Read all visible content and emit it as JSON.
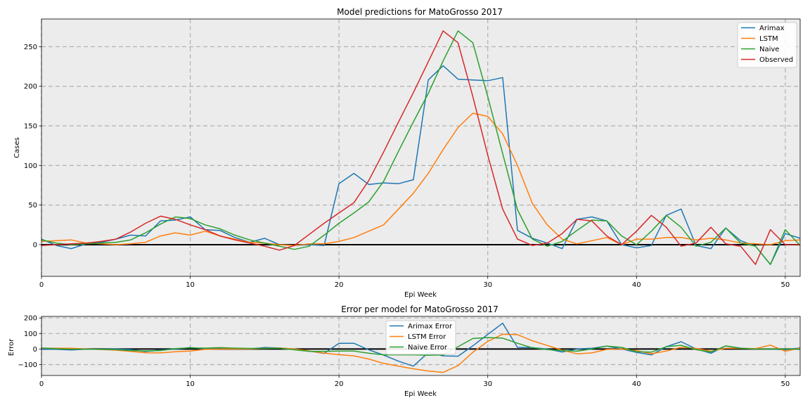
{
  "chart_data": [
    {
      "type": "line",
      "title": "Model predictions for MatoGrosso 2017",
      "xlabel": "Epi Week",
      "ylabel": "Cases",
      "xlim": [
        0,
        51
      ],
      "ylim": [
        -40,
        285
      ],
      "xticks": [
        0,
        10,
        20,
        30,
        40,
        50
      ],
      "yticks": [
        0,
        50,
        100,
        150,
        200,
        250
      ],
      "grid": true,
      "legend_position": "top-right",
      "zero_line": true,
      "x": [
        0,
        1,
        2,
        3,
        4,
        5,
        6,
        7,
        8,
        9,
        10,
        11,
        12,
        13,
        14,
        15,
        16,
        17,
        18,
        19,
        20,
        21,
        22,
        23,
        24,
        25,
        26,
        27,
        28,
        29,
        30,
        31,
        32,
        33,
        34,
        35,
        36,
        37,
        38,
        39,
        40,
        41,
        42,
        43,
        44,
        45,
        46,
        47,
        48,
        49,
        50,
        51
      ],
      "series": [
        {
          "name": "Arimax",
          "color": "#1f77b4",
          "values": [
            7,
            -1,
            -5,
            1,
            3,
            7,
            12,
            11,
            30,
            31,
            35,
            19,
            18,
            9,
            3,
            8,
            0,
            -1,
            0,
            -1,
            77,
            90,
            76,
            78,
            77,
            82,
            208,
            226,
            209,
            208,
            207,
            211,
            18,
            8,
            2,
            -5,
            32,
            35,
            30,
            0,
            -4,
            -1,
            37,
            45,
            -1,
            -5,
            21,
            5,
            -2,
            -25,
            14,
            8
          ]
        },
        {
          "name": "LSTM",
          "color": "#ff7f0e",
          "values": [
            4,
            5,
            6,
            2,
            1,
            0,
            1,
            3,
            11,
            15,
            12,
            17,
            11,
            7,
            3,
            2,
            0,
            -1,
            1,
            1,
            4,
            9,
            17,
            25,
            45,
            65,
            90,
            120,
            148,
            166,
            162,
            140,
            100,
            52,
            25,
            7,
            1,
            5,
            9,
            0,
            7,
            7,
            9,
            9,
            6,
            8,
            6,
            2,
            1,
            0,
            5,
            6
          ]
        },
        {
          "name": "Naive",
          "color": "#2ca02c",
          "values": [
            6,
            2,
            0,
            1,
            2,
            3,
            6,
            15,
            26,
            35,
            33,
            25,
            20,
            12,
            6,
            2,
            -2,
            -6,
            -2,
            12,
            27,
            40,
            54,
            80,
            118,
            155,
            191,
            232,
            270,
            255,
            187,
            115,
            44,
            7,
            -2,
            4,
            18,
            31,
            30,
            11,
            0,
            17,
            37,
            22,
            -2,
            3,
            21,
            2,
            -2,
            -25,
            19,
            -1
          ]
        },
        {
          "name": "Observed",
          "color": "#d62728",
          "values": [
            -1,
            0,
            1,
            2,
            4,
            7,
            16,
            27,
            36,
            32,
            25,
            19,
            11,
            6,
            2,
            -2,
            -7,
            -1,
            13,
            27,
            40,
            53,
            81,
            117,
            155,
            192,
            231,
            270,
            255,
            187,
            113,
            45,
            7,
            -1,
            2,
            14,
            32,
            30,
            11,
            0,
            17,
            37,
            22,
            -2,
            2,
            22,
            1,
            -2,
            -25,
            19,
            0,
            0
          ]
        }
      ]
    },
    {
      "type": "line",
      "title": "Error per model for MatoGrosso 2017",
      "xlabel": "Epi Week",
      "ylabel": "Error",
      "xlim": [
        0,
        51
      ],
      "ylim": [
        -170,
        210
      ],
      "xticks": [
        0,
        10,
        20,
        30,
        40,
        50
      ],
      "yticks": [
        -100,
        0,
        100,
        200
      ],
      "ytick_labels": [
        "−100",
        "0",
        "100",
        "200"
      ],
      "grid": true,
      "legend_position": "top-center",
      "zero_line": true,
      "x": [
        0,
        1,
        2,
        3,
        4,
        5,
        6,
        7,
        8,
        9,
        10,
        11,
        12,
        13,
        14,
        15,
        16,
        17,
        18,
        19,
        20,
        21,
        22,
        23,
        24,
        25,
        26,
        27,
        28,
        29,
        30,
        31,
        32,
        33,
        34,
        35,
        36,
        37,
        38,
        39,
        40,
        41,
        42,
        43,
        44,
        45,
        46,
        47,
        48,
        49,
        50,
        51
      ],
      "series": [
        {
          "name": "Arimax Error",
          "color": "#1f77b4",
          "values": [
            0,
            -2,
            -6,
            -1,
            -1,
            0,
            -4,
            -16,
            -6,
            -1,
            10,
            0,
            7,
            3,
            1,
            10,
            7,
            0,
            -13,
            -28,
            37,
            37,
            -5,
            -39,
            -78,
            -110,
            -23,
            -44,
            -46,
            21,
            94,
            166,
            11,
            9,
            0,
            -19,
            0,
            5,
            19,
            0,
            -21,
            -38,
            15,
            47,
            1,
            -27,
            20,
            6,
            0,
            0,
            -5,
            8
          ]
        },
        {
          "name": "LSTM Error",
          "color": "#ff7f0e",
          "values": [
            5,
            5,
            5,
            0,
            -3,
            -7,
            -15,
            -24,
            -25,
            -17,
            -13,
            -2,
            0,
            1,
            1,
            4,
            7,
            0,
            -12,
            -26,
            -36,
            -44,
            -64,
            -92,
            -110,
            -127,
            -141,
            -150,
            -107,
            -21,
            49,
            95,
            93,
            53,
            23,
            -7,
            -31,
            -25,
            -2,
            0,
            -10,
            -30,
            -13,
            11,
            4,
            -14,
            5,
            4,
            3,
            25,
            -14,
            6
          ]
        },
        {
          "name": "Naive Error",
          "color": "#2ca02c",
          "values": [
            7,
            2,
            -1,
            -1,
            -2,
            -4,
            -10,
            -12,
            -10,
            3,
            8,
            6,
            9,
            6,
            4,
            4,
            5,
            -5,
            -15,
            -15,
            -13,
            -13,
            -27,
            -37,
            -37,
            -37,
            -40,
            -38,
            15,
            68,
            74,
            70,
            37,
            8,
            -4,
            -10,
            -14,
            1,
            19,
            11,
            -17,
            -20,
            15,
            24,
            -4,
            -19,
            20,
            4,
            0,
            0,
            0,
            -1
          ]
        }
      ]
    }
  ]
}
